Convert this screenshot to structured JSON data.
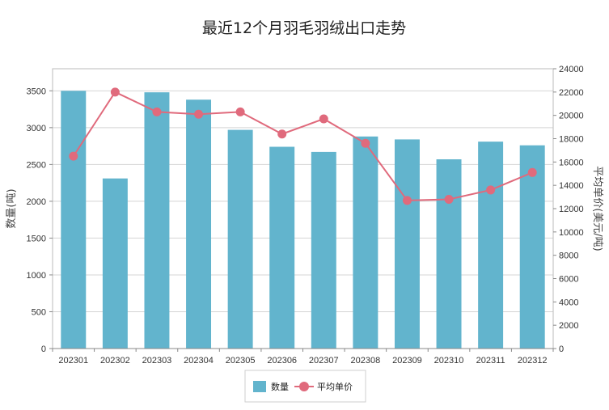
{
  "chart_data": {
    "type": "bar+line",
    "title": "最近12个月羽毛羽绒出口走势",
    "categories": [
      "202301",
      "202302",
      "202303",
      "202304",
      "202305",
      "202306",
      "202307",
      "202308",
      "202309",
      "202310",
      "202311",
      "202312"
    ],
    "series": [
      {
        "name": "数量",
        "type": "bar",
        "axis": "left",
        "color": "#62b4cd",
        "values": [
          3500,
          2310,
          3480,
          3380,
          2970,
          2740,
          2670,
          2880,
          2840,
          2570,
          2810,
          2760
        ]
      },
      {
        "name": "平均单价",
        "type": "line",
        "axis": "right",
        "color": "#e06a7c",
        "values": [
          16500,
          22000,
          20300,
          20100,
          20300,
          18400,
          19700,
          17600,
          12700,
          12800,
          13600,
          15100
        ]
      }
    ],
    "ylabel_left": "数量(吨)",
    "ylabel_right": "平均单价(美元/吨)",
    "ylim_left": [
      0,
      3800
    ],
    "yticks_left": [
      0,
      500,
      1000,
      1500,
      2000,
      2500,
      3000,
      3500
    ],
    "ylim_right": [
      0,
      24000
    ],
    "yticks_right": [
      0,
      2000,
      4000,
      6000,
      8000,
      10000,
      12000,
      14000,
      16000,
      18000,
      20000,
      22000,
      24000
    ],
    "grid": true,
    "legend_position": "bottom-center"
  }
}
